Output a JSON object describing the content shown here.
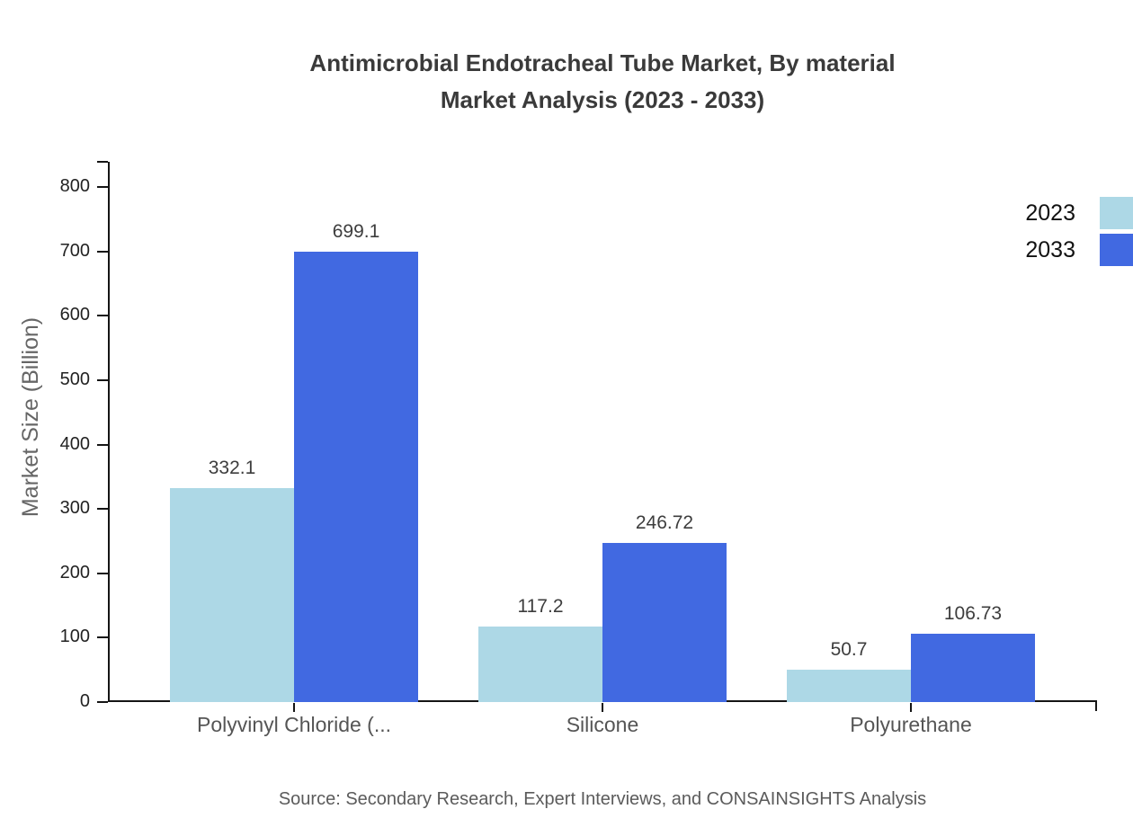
{
  "title": {
    "line1": "Antimicrobial Endotracheal Tube Market, By material",
    "line2": "Market Analysis (2023 - 2033)"
  },
  "source": "Source: Secondary Research, Expert Interviews, and CONSAINSIGHTS Analysis",
  "chart_data": {
    "type": "bar",
    "title": "Antimicrobial Endotracheal Tube Market, By material Market Analysis (2023 - 2033)",
    "xlabel": "",
    "ylabel": "Market Size (Billion)",
    "categories": [
      "Polyvinyl Chloride (...",
      "Silicone",
      "Polyurethane"
    ],
    "series": [
      {
        "name": "2023",
        "color": "#add8e6",
        "values": [
          332.1,
          117.2,
          50.7
        ]
      },
      {
        "name": "2033",
        "color": "#4169e1",
        "values": [
          699.1,
          246.72,
          106.73
        ]
      }
    ],
    "ylim": [
      0,
      800
    ],
    "yticks": [
      0,
      100,
      200,
      300,
      400,
      500,
      600,
      700,
      800
    ],
    "grid": false,
    "legend_position": "top-right",
    "bar_value_labels": true
  },
  "colors": {
    "background": "#ffffff",
    "axis": "#151515",
    "title_text": "#3a3a3a",
    "axis_title_text": "#666666",
    "category_text": "#555555",
    "value_text": "#3d3d3d",
    "series_2023": "#add8e6",
    "series_2033": "#4169e1"
  }
}
